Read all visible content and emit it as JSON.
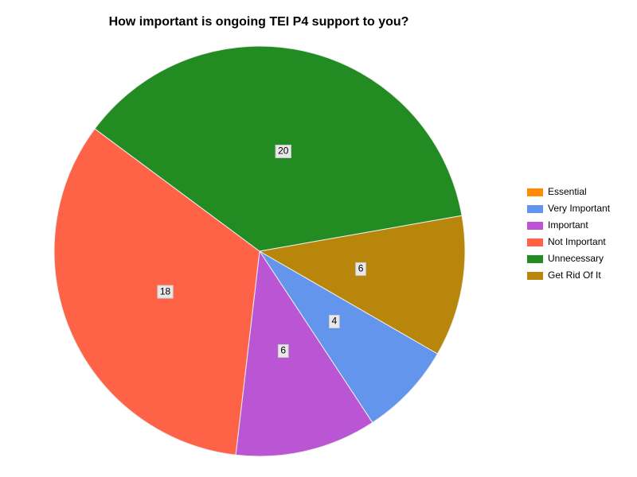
{
  "chart_data": {
    "type": "pie",
    "title": "How important is ongoing TEI P4 support to you?",
    "categories": [
      "Essential",
      "Very Important",
      "Important",
      "Not Important",
      "Unnecessary",
      "Get Rid Of It"
    ],
    "values": [
      0,
      4,
      6,
      18,
      20,
      6
    ],
    "colors": [
      "#ff8c00",
      "#6495ed",
      "#ba55d3",
      "#ff6347",
      "#228b22",
      "#b8860b"
    ],
    "legend": "right"
  }
}
